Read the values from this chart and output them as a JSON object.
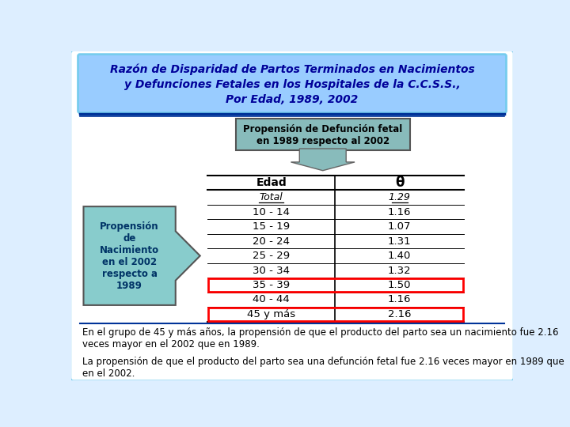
{
  "title_line1": "Razón de Disparidad de Partos Terminados en Nacimientos",
  "title_line2": "y Defunciones Fetales en los Hospitales de la C.C.S.S.,",
  "title_line3": "Por Edad, 1989, 2002",
  "title_color": "#000099",
  "title_bg": "#99CCFF",
  "border_color": "#77CCEE",
  "ages": [
    "Total",
    "10 - 14",
    "15 - 19",
    "20 - 24",
    "25 - 29",
    "30 - 34",
    "35 - 39",
    "40 - 44",
    "45 y más"
  ],
  "thetas": [
    "1.29",
    "1.16",
    "1.07",
    "1.31",
    "1.40",
    "1.32",
    "1.50",
    "1.16",
    "2.16"
  ],
  "highlighted_rows": [
    6,
    8
  ],
  "arrow_label": "Propensión\nde\nNacimiento\nen el 2002\nrespecto a\n1989",
  "top_label_line1": "Propensión de Defunción fetal",
  "top_label_line2": "en 1989 respecto al 2002",
  "top_label_bg": "#88BBBB",
  "col_header_edad": "Edad",
  "col_header_theta": "θ",
  "note1": "En el grupo de 45 y más años, la propensión de que el producto del parto sea un nacimiento fue 2.16 veces mayor en el 2002 que en 1989.",
  "note2": "La propensión de que el producto del parto sea una defunción fetal fue 2.16 veces mayor en 1989 que en el 2002.",
  "bg_color": "#FFFFFF",
  "outer_bg": "#DDEEFF"
}
